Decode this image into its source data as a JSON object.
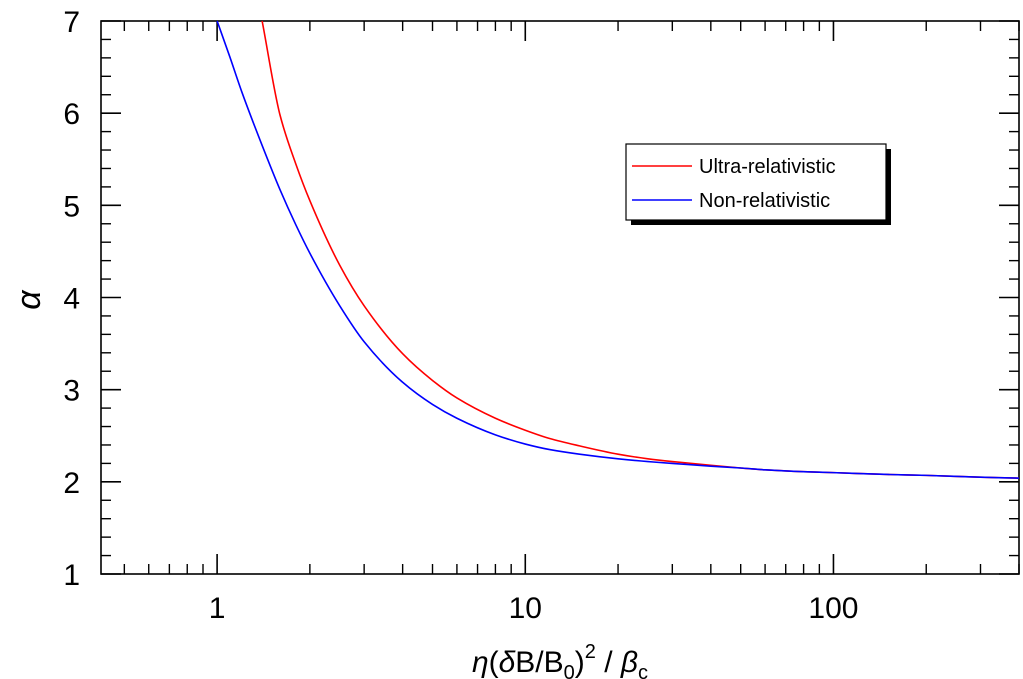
{
  "chart_data": {
    "type": "line",
    "xlabel": {
      "eta": "η",
      "open": "(",
      "delta": "δ",
      "ratio": "B/B",
      "ratio_sub": "0",
      "close": ")",
      "power": "2",
      "slash": " / ",
      "beta": "β",
      "beta_sub": "c"
    },
    "ylabel": "α",
    "x_scale": "log",
    "xlim": [
      0.42,
      400
    ],
    "ylim": [
      1,
      7
    ],
    "x_ticks": [
      {
        "value": 1,
        "label": "1"
      },
      {
        "value": 10,
        "label": "10"
      },
      {
        "value": 100,
        "label": "100"
      }
    ],
    "y_ticks": [
      {
        "value": 1,
        "label": "1"
      },
      {
        "value": 2,
        "label": "2"
      },
      {
        "value": 3,
        "label": "3"
      },
      {
        "value": 4,
        "label": "4"
      },
      {
        "value": 5,
        "label": "5"
      },
      {
        "value": 6,
        "label": "6"
      },
      {
        "value": 7,
        "label": "7"
      }
    ],
    "legend_position": "upper-right",
    "grid": false,
    "series": [
      {
        "name": "Ultra-relativistic",
        "color": "#ff0000",
        "x": [
          1.4,
          1.6,
          1.8,
          2,
          2.5,
          3,
          4,
          5,
          6,
          8,
          10,
          12,
          15,
          20,
          25,
          30,
          40,
          50,
          60,
          80,
          100,
          150,
          200,
          300,
          400
        ],
        "y": [
          7.0,
          5.98,
          5.45,
          5.05,
          4.35,
          3.91,
          3.39,
          3.1,
          2.91,
          2.69,
          2.56,
          2.47,
          2.39,
          2.3,
          2.25,
          2.22,
          2.18,
          2.15,
          2.13,
          2.11,
          2.1,
          2.08,
          2.07,
          2.05,
          2.04
        ]
      },
      {
        "name": "Non-relativistic",
        "color": "#0000ff",
        "x": [
          1.0,
          1.1,
          1.2,
          1.4,
          1.6,
          1.8,
          2,
          2.5,
          3,
          4,
          5,
          6,
          8,
          10,
          12,
          15,
          20,
          25,
          30,
          40,
          50,
          60,
          80,
          100,
          150,
          200,
          300,
          400
        ],
        "y": [
          7.0,
          6.61,
          6.24,
          5.65,
          5.17,
          4.79,
          4.48,
          3.91,
          3.52,
          3.08,
          2.84,
          2.69,
          2.51,
          2.41,
          2.35,
          2.3,
          2.25,
          2.22,
          2.2,
          2.17,
          2.15,
          2.13,
          2.11,
          2.1,
          2.08,
          2.07,
          2.05,
          2.04
        ]
      }
    ]
  }
}
